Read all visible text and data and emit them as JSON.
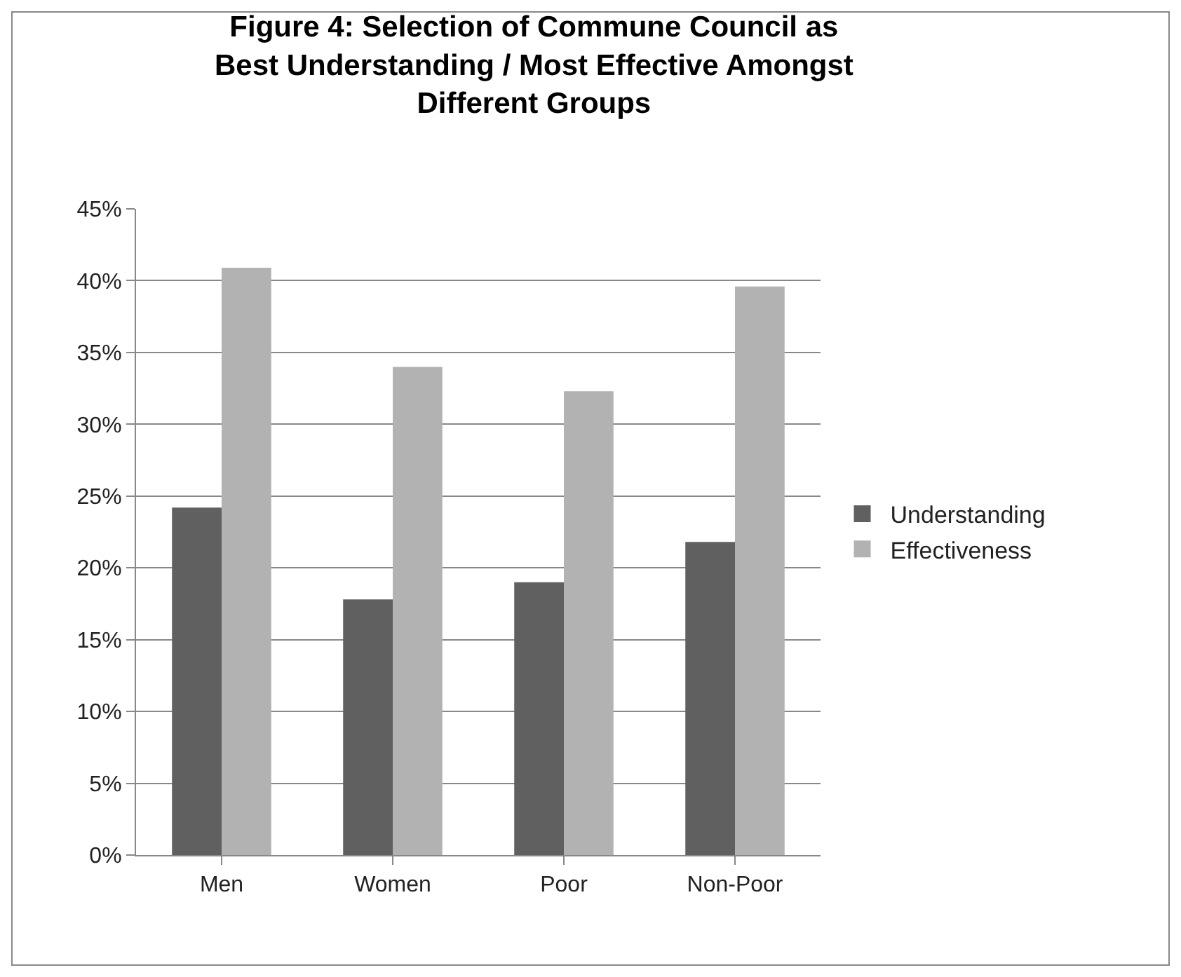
{
  "chart_data": {
    "type": "bar",
    "title": "Figure 4: Selection of Commune Council as Best Understanding / Most Effective Amongst Different Groups",
    "categories": [
      "Men",
      "Women",
      "Poor",
      "Non-Poor"
    ],
    "series": [
      {
        "name": "Understanding",
        "color": "#606060",
        "values": [
          24.2,
          17.8,
          19.0,
          21.8
        ]
      },
      {
        "name": "Effectiveness",
        "color": "#b2b2b2",
        "values": [
          40.9,
          34.0,
          32.3,
          39.6
        ]
      }
    ],
    "ylim": [
      0,
      45
    ],
    "yticks": [
      {
        "value": 0,
        "label": "0%"
      },
      {
        "value": 5,
        "label": "5%"
      },
      {
        "value": 10,
        "label": "10%"
      },
      {
        "value": 15,
        "label": "15%"
      },
      {
        "value": 20,
        "label": "20%"
      },
      {
        "value": 25,
        "label": "25%"
      },
      {
        "value": 30,
        "label": "30%"
      },
      {
        "value": 35,
        "label": "35%"
      },
      {
        "value": 40,
        "label": "40%"
      },
      {
        "value": 45,
        "label": "45%"
      }
    ],
    "grid": "y",
    "legend": "right"
  }
}
